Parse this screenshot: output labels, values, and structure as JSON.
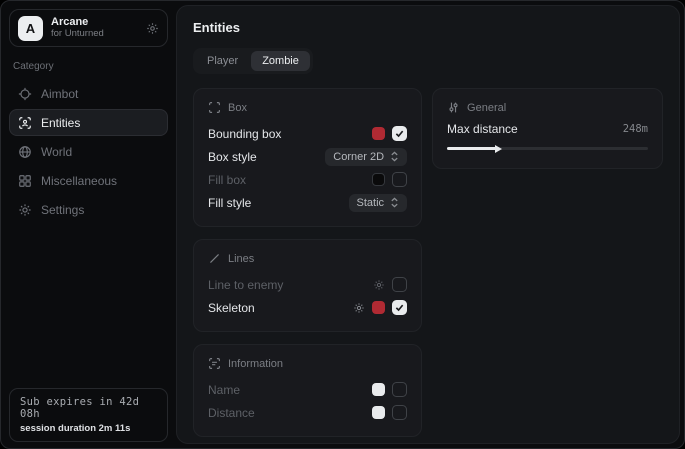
{
  "colors": {
    "accent_red": "#b02a33",
    "swatch_black": "#0a0a0b",
    "swatch_white": "#e9ebed"
  },
  "sidebar": {
    "app": {
      "logo_letter": "A",
      "title": "Arcane",
      "subtitle": "for Unturned"
    },
    "category_label": "Category",
    "items": [
      {
        "label": "Aimbot",
        "icon": "crosshair-icon",
        "active": false
      },
      {
        "label": "Entities",
        "icon": "entity-scan-icon",
        "active": true
      },
      {
        "label": "World",
        "icon": "globe-icon",
        "active": false
      },
      {
        "label": "Miscellaneous",
        "icon": "grid-icon",
        "active": false
      },
      {
        "label": "Settings",
        "icon": "gear-icon",
        "active": false
      }
    ],
    "footer": {
      "sub_expiry": "Sub expires in 42d 08h",
      "session_duration": "session duration 2m 11s"
    }
  },
  "main": {
    "title": "Entities",
    "tabs": [
      {
        "label": "Player",
        "active": false
      },
      {
        "label": "Zombie",
        "active": true
      }
    ],
    "cards": {
      "box": {
        "title": "Box",
        "rows": [
          {
            "label": "Bounding box",
            "enabled": true,
            "swatch": "#b02a33",
            "checked": true
          },
          {
            "label": "Box style",
            "enabled": true,
            "dropdown": "Corner 2D"
          },
          {
            "label": "Fill box",
            "enabled": false,
            "swatch": "#0a0a0b",
            "checked": false
          },
          {
            "label": "Fill style",
            "enabled": true,
            "dropdown": "Static"
          }
        ]
      },
      "lines": {
        "title": "Lines",
        "rows": [
          {
            "label": "Line to enemy",
            "enabled": false,
            "checked": false
          },
          {
            "label": "Skeleton",
            "enabled": true,
            "swatch": "#b02a33",
            "checked": true
          }
        ]
      },
      "information": {
        "title": "Information",
        "rows": [
          {
            "label": "Name",
            "enabled": false,
            "swatch": "#e9ebed",
            "checked": false
          },
          {
            "label": "Distance",
            "enabled": false,
            "swatch": "#e9ebed",
            "checked": false
          }
        ]
      },
      "general": {
        "title": "General",
        "slider": {
          "label": "Max distance",
          "value": "248m",
          "percent": 24.8
        }
      }
    }
  }
}
